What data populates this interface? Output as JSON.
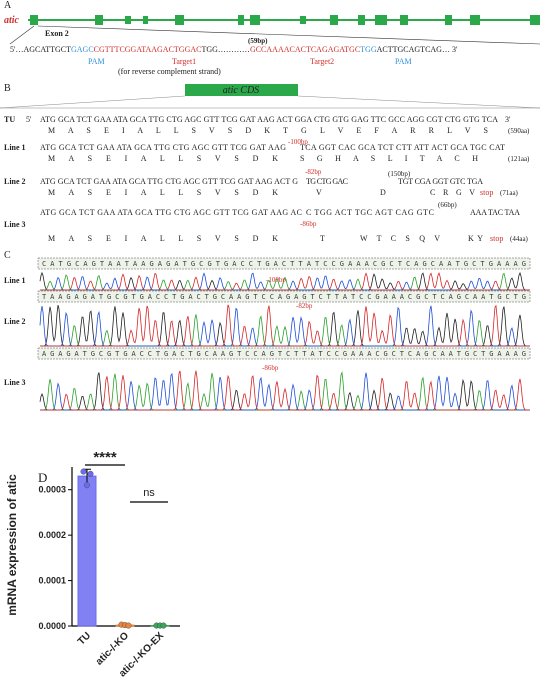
{
  "panel_a": {
    "label": "A",
    "gene": "atic",
    "exon": "Exon 2",
    "insert": "(59bp)",
    "sequence": [
      "5'…AGCATTGCT",
      "GAGC",
      "CGTTTCGGATAAGACTGGAC",
      "TGG…………",
      "GCCAAAACACTCAGAGATGC",
      "TGG",
      "ACTTGCAGTCAG… 3'"
    ],
    "annotations": [
      "PAM",
      "Target1",
      "(for reverse complement strand)",
      "Target2",
      "PAM"
    ]
  },
  "panel_b": {
    "label": "B",
    "cds": "atic CDS",
    "rows": [
      {
        "name": "TU",
        "dna": [
          "5'",
          "ATG GCA TCT GAA ATA GCA TTG CTG AGC GTT TCG GAT AAG ACT GGA CTG GTG GAG TTC GCC AGG CGT CTG GTG TCA",
          "3'"
        ],
        "protein": [
          "M A S E I A L L S V S D K T G L V E F A R R L V S"
        ],
        "length": "(590aa)"
      },
      {
        "name": "Line 1",
        "dna": [
          "ATG GCA TCT GAA ATA GCA TTG CTG AGC GTT TCG GAT AAG",
          "TCA GGT CAC GCA TCT CTT ATT ACT GCA TGC CAT"
        ],
        "deletion": "-100bp",
        "protein": [
          "M A S E I A L L S V S D K",
          "S G H A S L I T A C H"
        ],
        "length": "(121aa)"
      },
      {
        "name": "Line 2",
        "dna": [
          "ATG GCA TCT GAA ATA GCA TTG CTG AGC GTT TCG GAT AAG ACT G",
          "TG CTG GAC",
          "TGT CGA GGT GTC TGA"
        ],
        "deletion": "-82bp",
        "insertion": "(150bp)",
        "protein": [
          "M A S E I A L L S V S D K",
          "V",
          "D",
          "C R G V"
        ],
        "stop": "stop",
        "length": "(71aa)"
      },
      {
        "name": "Line 3",
        "dna": [
          "ATG GCA TCT GAA ATA GCA TTG CTG AGC GTT TCG GAT AAG AC",
          "C TGG ACT TGC AGT CAG GTC",
          "AAA TAC TAA"
        ],
        "deletion": "-86bp",
        "insertion": "(66bp)",
        "protein": [
          "M A S E I A L L S V S D K",
          "T",
          "W T C S Q V",
          "K Y"
        ],
        "stop": "stop",
        "length": "(44aa)"
      }
    ]
  },
  "panel_c": {
    "label": "C",
    "rows": [
      "Line 1",
      "Line 2",
      "Line 3"
    ],
    "strips": [
      "CATGCAGTAATAAGAGATGCGTGACCTGACTTATCCGAAACGCTCAGCAATGCTGAAAG",
      "TAAGAGATGCGTGACCTGACTGCAAGTCCAGAGTCTTATCCGAAACGCTCAGCAATGCTG",
      "AGAGATGCGTGACCTGACTGCAAGTCCAGTCTTATCCGAAACGCTCAGCAATGCTGAAAG"
    ],
    "deletions": [
      "-100bp",
      "-82bp",
      "-86bp"
    ]
  },
  "chart_data": {
    "type": "bar",
    "panel_label": "D",
    "ylabel": "mRNA expression of atic",
    "categories": [
      "TU",
      "atic-/-KO",
      "atic-/-KO-EX"
    ],
    "values": [
      0.00033,
      2e-06,
      1e-06
    ],
    "errors": [
      1.5e-05,
      1e-06,
      5e-07
    ],
    "points": [
      [
        0.00034,
        0.00031,
        0.000335
      ],
      [
        3e-06,
        2e-06,
        1e-06
      ],
      [
        1e-06,
        1e-06,
        1e-06
      ]
    ],
    "colors": [
      "#6b6bf2",
      "#e8843c",
      "#3aa55a"
    ],
    "ylim": [
      0,
      0.00035
    ],
    "yticks": [
      {
        "value": 0,
        "label": "0.0000"
      },
      {
        "value": 0.0001,
        "label": "0.0001"
      },
      {
        "value": 0.0002,
        "label": "0.0002"
      },
      {
        "value": 0.0003,
        "label": "0.0003"
      }
    ],
    "significance": [
      "****",
      "ns"
    ]
  }
}
